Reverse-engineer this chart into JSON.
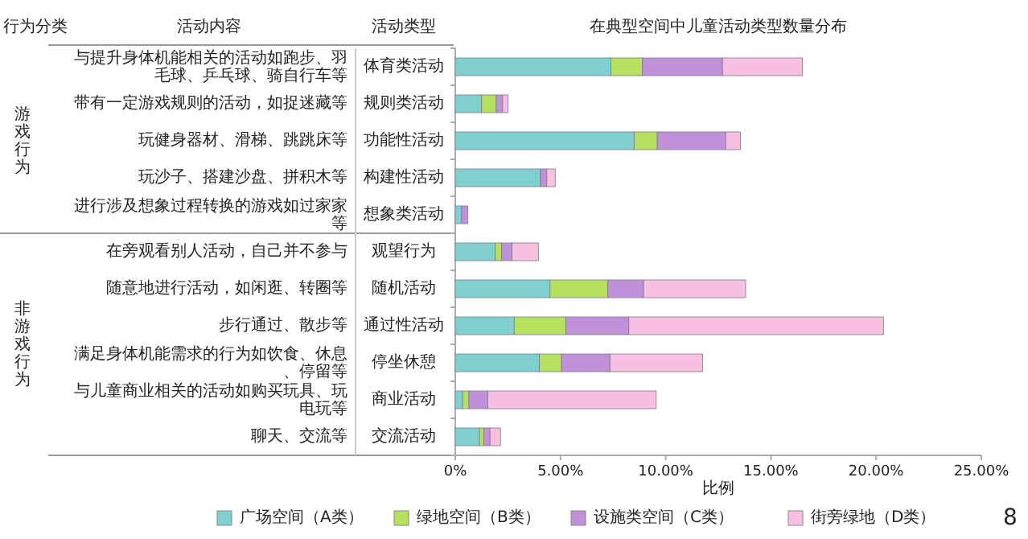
{
  "chart_data": {
    "type": "bar",
    "orientation": "horizontal",
    "stacked": true,
    "title": "在典型空间中儿童活动类型数量分布",
    "xlabel": "比例",
    "ylabel": "活动类型",
    "categories": [
      "体育类活动",
      "规则类活动",
      "功能性活动",
      "构建性活动",
      "想象类活动",
      "观望行为",
      "随机活动",
      "通过性活动",
      "停坐休憩",
      "商业活动",
      "交流活动"
    ],
    "series": [
      {
        "name": "广场空间（A类）",
        "color": "#80d0d0",
        "values": [
          7.4,
          1.25,
          8.5,
          4.05,
          0.3,
          1.9,
          4.5,
          2.8,
          4.0,
          0.35,
          1.15
        ]
      },
      {
        "name": "绿地空间（B类）",
        "color": "#b8e060",
        "values": [
          1.5,
          0.7,
          1.1,
          0,
          0,
          0.3,
          2.75,
          2.45,
          1.05,
          0.3,
          0.2
        ]
      },
      {
        "name": "设施类空间（C类）",
        "color": "#c090d8",
        "values": [
          3.8,
          0.3,
          3.25,
          0.3,
          0.3,
          0.5,
          1.7,
          3.0,
          2.3,
          0.9,
          0.3
        ]
      },
      {
        "name": "街旁绿地（D类）",
        "color": "#f8c0e0",
        "values": [
          3.8,
          0.25,
          0.7,
          0.4,
          0,
          1.25,
          4.85,
          12.1,
          4.4,
          8.0,
          0.5
        ]
      }
    ],
    "xlim": [
      0,
      25
    ],
    "xticks": [
      {
        "value": 0,
        "label": "0%"
      },
      {
        "value": 5,
        "label": "5.00%"
      },
      {
        "value": 10,
        "label": "10.00%"
      },
      {
        "value": 15,
        "label": "15.00%"
      },
      {
        "value": 20,
        "label": "20.00%"
      },
      {
        "value": 25,
        "label": "25.00%"
      }
    ],
    "legend": "bottom",
    "annotations": [
      "行为分类",
      "活动内容",
      "游戏行为",
      "非游戏行为",
      "8",
      "与提升身体机能相关的活动如跑步、羽毛球、乒乓球、骑自行车等",
      "带有一定游戏规则的活动，如捉迷藏等",
      "玩健身器材、滑梯、跳跳床等",
      "玩沙子、搭建沙盘、拼积木等",
      "进行涉及想象过程转换的游戏如过家家等",
      "在旁观看别人活动，自己并不参与",
      "随意地进行活动，如闲逛、转圈等",
      "步行通过、散步等",
      "满足身体机能需求的行为如饮食、休息、停留等",
      "与儿童商业相关的活动如购买玩具、玩电玩等",
      "聊天、交流等"
    ]
  }
}
